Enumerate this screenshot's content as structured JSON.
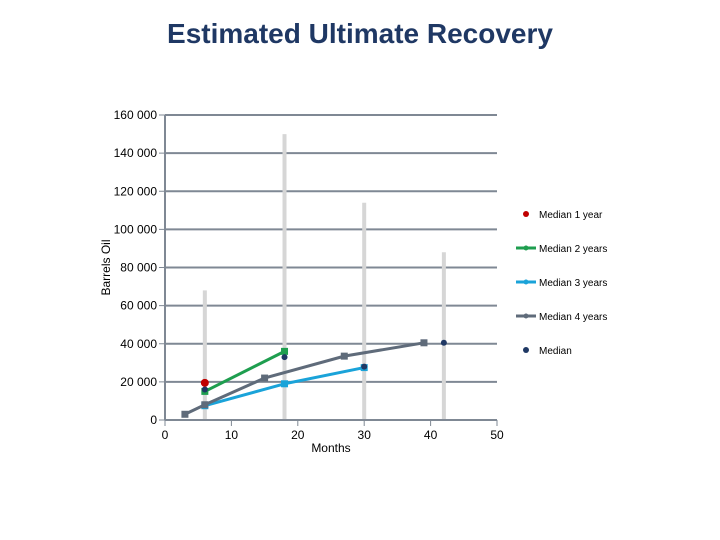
{
  "title": "Estimated Ultimate Recovery",
  "chart_data": {
    "type": "line",
    "title": "Estimated Ultimate Recovery",
    "xlabel": "Months",
    "ylabel": "Barrels Oil",
    "xlim": [
      0,
      50
    ],
    "ylim": [
      0,
      160000
    ],
    "x_ticks": [
      0,
      10,
      20,
      30,
      40,
      50
    ],
    "y_ticks": [
      0,
      20000,
      40000,
      60000,
      80000,
      100000,
      120000,
      140000,
      160000
    ],
    "x_tick_labels": [
      "0",
      "10",
      "20",
      "30",
      "40",
      "50"
    ],
    "y_tick_labels": [
      "0",
      "20 000",
      "40 000",
      "60 000",
      "80 000",
      "100 000",
      "120 000",
      "140 000",
      "160 000"
    ],
    "grid": "horizontal",
    "legend_position": "right",
    "ranges": [
      {
        "x": 6,
        "low": 0,
        "high": 68000
      },
      {
        "x": 18,
        "low": 0,
        "high": 150000
      },
      {
        "x": 30,
        "low": 0,
        "high": 114000
      },
      {
        "x": 42,
        "low": 0,
        "high": 88000
      }
    ],
    "series": [
      {
        "name": "Median 1 year",
        "color": "#c00000",
        "style": "marker",
        "points": [
          [
            6,
            19500
          ]
        ]
      },
      {
        "name": "Median 2 years",
        "color": "#1e9e4f",
        "style": "line",
        "points": [
          [
            6,
            15000
          ],
          [
            18,
            36000
          ]
        ]
      },
      {
        "name": "Median 3 years",
        "color": "#1aa3d9",
        "style": "line",
        "points": [
          [
            6,
            7500
          ],
          [
            18,
            19000
          ],
          [
            30,
            27500
          ]
        ]
      },
      {
        "name": "Median 4 years",
        "color": "#5f6b7a",
        "style": "line",
        "points": [
          [
            3,
            3000
          ],
          [
            6,
            8000
          ],
          [
            15,
            22000
          ],
          [
            27,
            33500
          ],
          [
            39,
            40500
          ]
        ]
      },
      {
        "name": "Median",
        "color": "#1f3864",
        "style": "marker",
        "points": [
          [
            6,
            16000
          ],
          [
            18,
            33000
          ],
          [
            30,
            28000
          ],
          [
            42,
            40500
          ]
        ]
      }
    ]
  }
}
